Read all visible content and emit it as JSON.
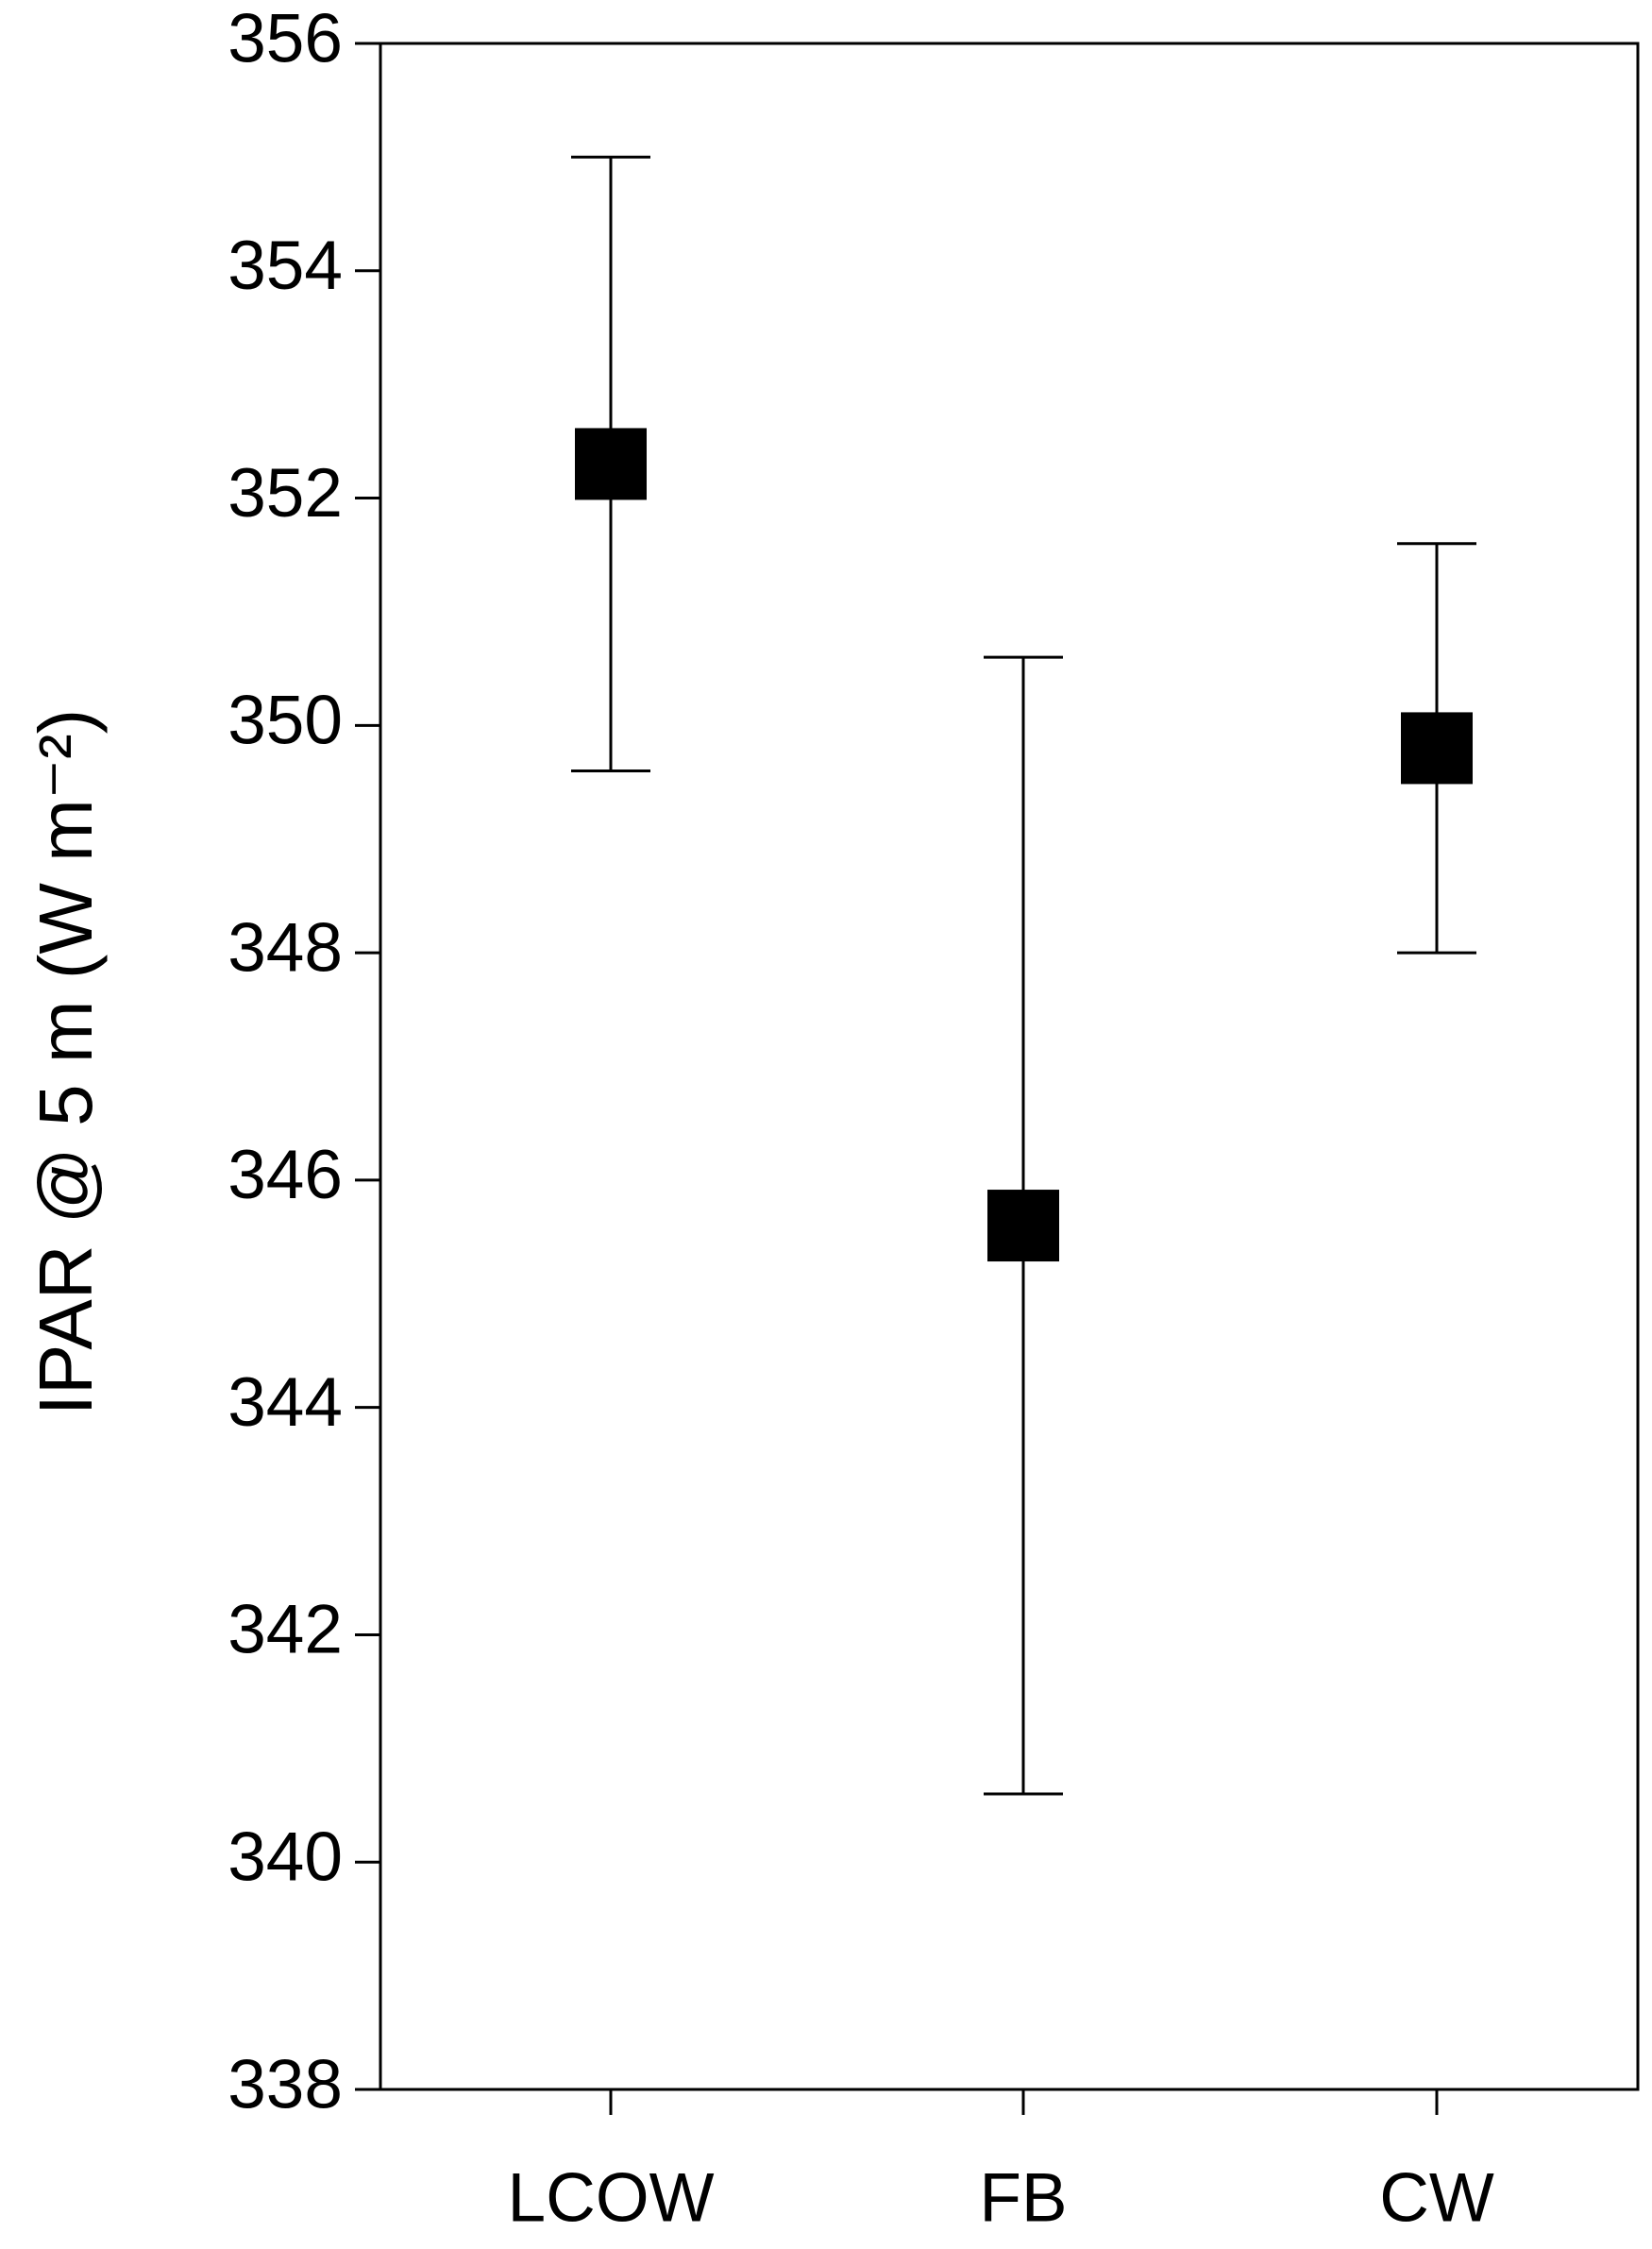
{
  "chart_data": {
    "type": "errorbar",
    "y_label": "IPAR @ 5 m (W m⁻²)",
    "categories": [
      "LCOW",
      "FB",
      "CW"
    ],
    "values": [
      352.3,
      345.6,
      349.8
    ],
    "errors": [
      2.7,
      5.0,
      1.8
    ],
    "color": "#000000",
    "ylim": [
      338,
      356
    ],
    "yticks": [
      338,
      340,
      342,
      344,
      346,
      348,
      350,
      352,
      354,
      356
    ],
    "grid": false
  }
}
